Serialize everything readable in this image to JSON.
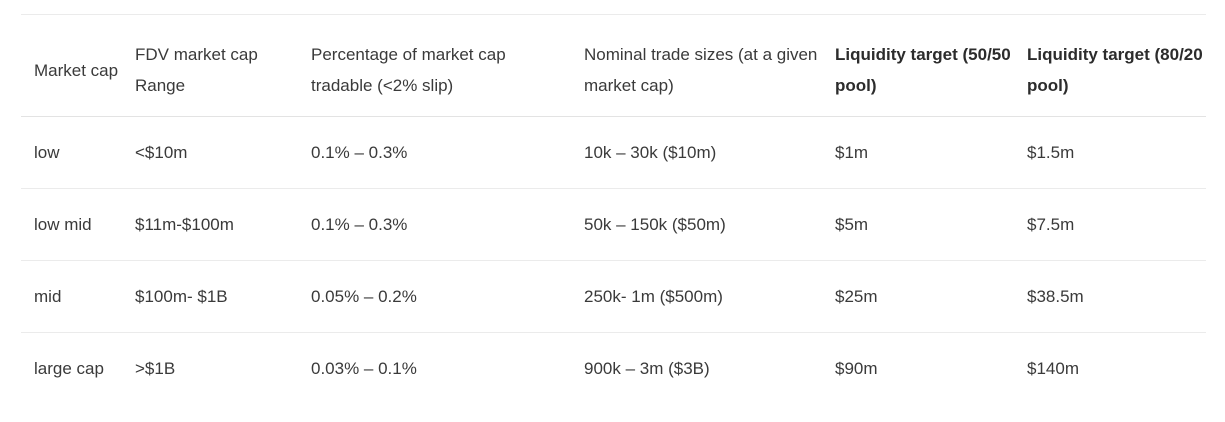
{
  "table": {
    "headers": [
      "Market cap",
      "FDV market cap Range",
      "Percentage of market cap tradable (<2% slip)",
      "Nominal trade sizes (at a given market cap)",
      "Liquidity target (50/50 pool)",
      "Liquidity target (80/20 pool)"
    ],
    "rows": [
      [
        "low",
        "<$10m",
        "0.1% – 0.3%",
        "10k – 30k ($10m)",
        "$1m",
        "$1.5m"
      ],
      [
        "low mid",
        "$11m-$100m",
        "0.1% – 0.3%",
        "50k – 150k ($50m)",
        "$5m",
        "$7.5m"
      ],
      [
        "mid",
        "$100m- $1B",
        "0.05%  – 0.2%",
        "250k- 1m ($500m)",
        "$25m",
        "$38.5m"
      ],
      [
        "large cap",
        ">$1B",
        "0.03% – 0.1%",
        "900k – 3m ($3B)",
        "$90m",
        "$140m"
      ]
    ]
  }
}
